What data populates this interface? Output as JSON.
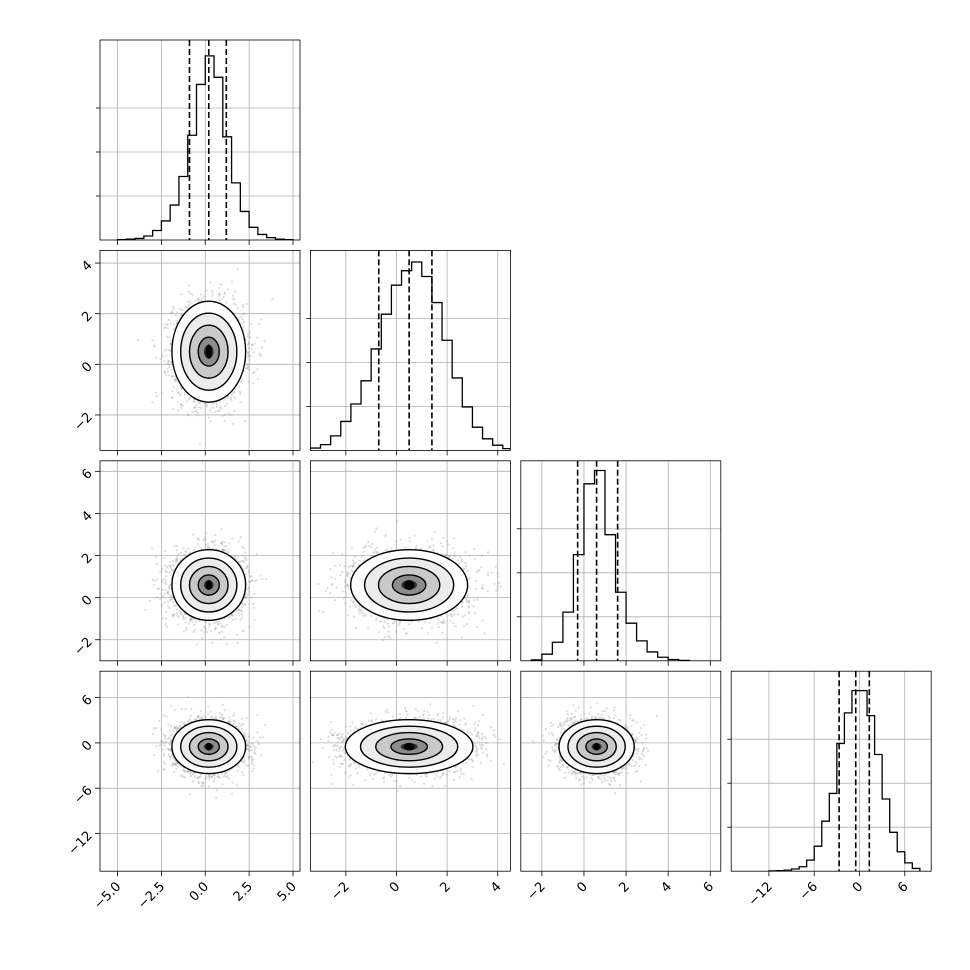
{
  "chart_data": {
    "type": "corner",
    "grid": true,
    "n_dims": 4,
    "ranges": [
      [
        -6.0,
        5.4
      ],
      [
        -3.4,
        4.5
      ],
      [
        -3.0,
        6.5
      ],
      [
        -17.0,
        9.5
      ]
    ],
    "ticks": [
      {
        "values": [
          -5.0,
          -2.5,
          0.0,
          2.5,
          5.0
        ],
        "labels": [
          "−5.0",
          "−2.5",
          "0.0",
          "2.5",
          "5.0"
        ]
      },
      {
        "values": [
          -2,
          0,
          2,
          4
        ],
        "labels": [
          "−2",
          "0",
          "2",
          "4"
        ]
      },
      {
        "values": [
          -2,
          0,
          2,
          4,
          6
        ],
        "labels": [
          "−2",
          "0",
          "2",
          "4",
          "6"
        ]
      },
      {
        "values": [
          -12,
          -6,
          0,
          6
        ],
        "labels": [
          "−12",
          "−6",
          "0",
          "6"
        ]
      }
    ],
    "quantiles": [
      [
        -0.9,
        0.2,
        1.2
      ],
      [
        -0.7,
        0.5,
        1.4
      ],
      [
        -0.3,
        0.6,
        1.6
      ],
      [
        -2.7,
        -0.5,
        1.3
      ]
    ],
    "histograms": [
      {
        "bin_edges": [
          -5.0,
          -4.5,
          -4.0,
          -3.5,
          -3.0,
          -2.5,
          -2.0,
          -1.5,
          -1.0,
          -0.5,
          0.0,
          0.5,
          1.0,
          1.5,
          2.0,
          2.5,
          3.0,
          3.5,
          4.0,
          4.5,
          5.0
        ],
        "counts": [
          0.5,
          1,
          2,
          5,
          12,
          24,
          44,
          80,
          132,
          196,
          232,
          205,
          130,
          72,
          36,
          16,
          7,
          3,
          1,
          0.5
        ],
        "ymax": 252
      },
      {
        "bin_edges": [
          -3.4,
          -3.0,
          -2.6,
          -2.2,
          -1.8,
          -1.4,
          -1.0,
          -0.6,
          -0.2,
          0.2,
          0.6,
          1.0,
          1.4,
          1.8,
          2.2,
          2.6,
          3.0,
          3.4,
          3.8,
          4.2,
          4.5
        ],
        "counts": [
          4,
          10,
          25,
          50,
          80,
          120,
          175,
          235,
          285,
          310,
          325,
          300,
          255,
          190,
          125,
          75,
          40,
          20,
          9,
          3
        ],
        "ymax": 345
      },
      {
        "bin_edges": [
          -2.5,
          -2.0,
          -1.5,
          -1.0,
          -0.5,
          0.0,
          0.5,
          1.0,
          1.5,
          2.0,
          2.5,
          3.0,
          3.5,
          4.0,
          4.5,
          5.0
        ],
        "counts": [
          2,
          15,
          42,
          110,
          240,
          400,
          430,
          285,
          155,
          85,
          45,
          20,
          8,
          3,
          1
        ],
        "ymax": 452
      },
      {
        "bin_edges": [
          -12.0,
          -11.0,
          -10.0,
          -9.0,
          -8.0,
          -7.0,
          -6.0,
          -5.0,
          -4.0,
          -3.0,
          -2.0,
          -1.0,
          0.0,
          1.0,
          2.0,
          3.0,
          4.0,
          5.0,
          6.0,
          7.0,
          8.0
        ],
        "counts": [
          0.5,
          1,
          2,
          4,
          8,
          20,
          45,
          90,
          140,
          230,
          285,
          325,
          325,
          280,
          210,
          130,
          70,
          35,
          15,
          5
        ],
        "ymax": 360
      }
    ],
    "pairs": [
      {
        "row": 1,
        "col": 0,
        "mean": [
          0.2,
          0.5
        ],
        "sd": [
          1.0,
          0.95
        ],
        "corr": 0.0
      },
      {
        "row": 2,
        "col": 0,
        "mean": [
          0.2,
          0.6
        ],
        "sd": [
          1.0,
          0.8
        ],
        "corr": 0.0
      },
      {
        "row": 2,
        "col": 1,
        "mean": [
          0.5,
          0.6
        ],
        "sd": [
          1.1,
          0.8
        ],
        "corr": 0.0
      },
      {
        "row": 3,
        "col": 0,
        "mean": [
          0.2,
          -0.5
        ],
        "sd": [
          1.0,
          1.7
        ],
        "corr": 0.0
      },
      {
        "row": 3,
        "col": 1,
        "mean": [
          0.5,
          -0.5
        ],
        "sd": [
          1.2,
          1.7
        ],
        "corr": 0.05
      },
      {
        "row": 3,
        "col": 2,
        "mean": [
          0.6,
          -0.5
        ],
        "sd": [
          0.85,
          1.7
        ],
        "corr": 0.0
      }
    ],
    "colors": {
      "line": "#000000",
      "points": "#9a9a9a",
      "grid": "#b0b0b0",
      "density_dark": "#000000"
    }
  }
}
